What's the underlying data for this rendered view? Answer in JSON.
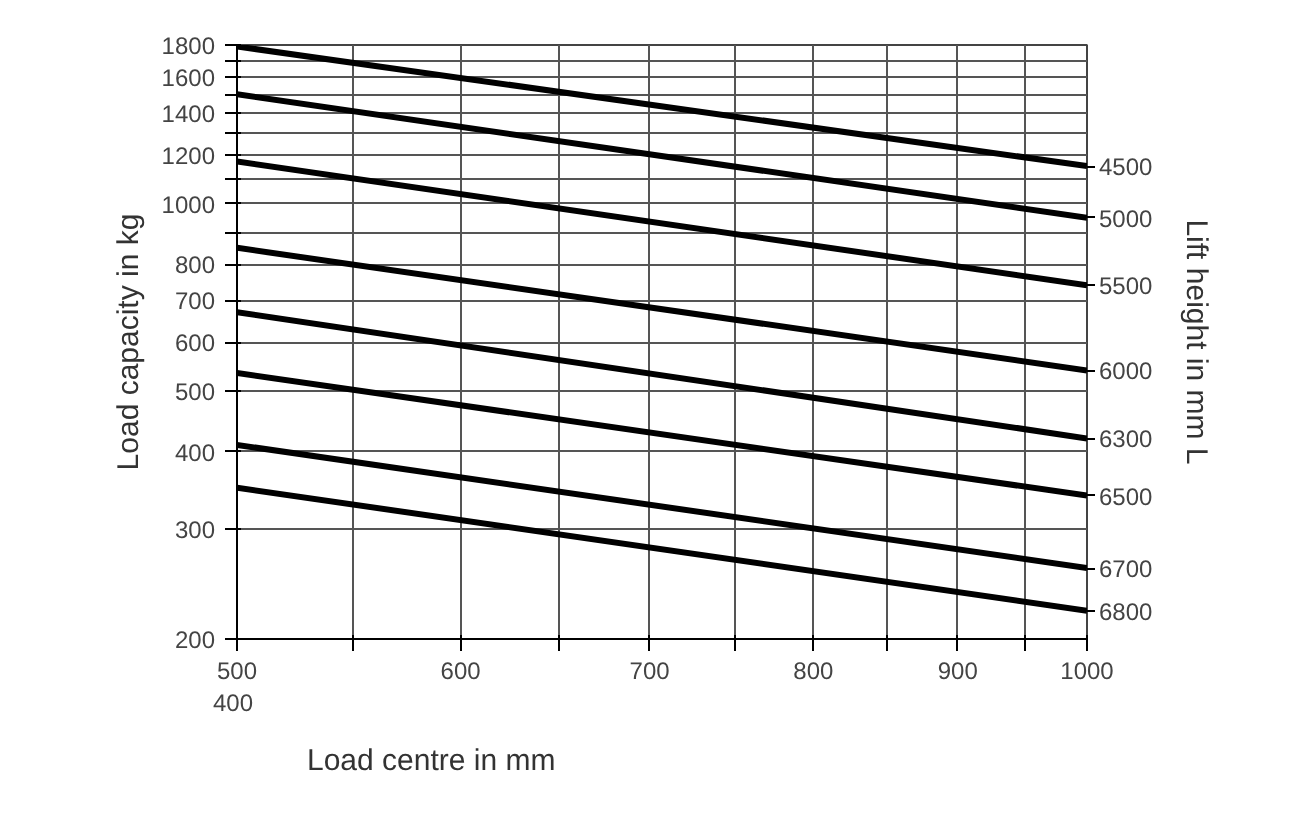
{
  "chart_data": {
    "type": "line",
    "xlabel": "Load centre in mm",
    "ylabel": "Load capacity in kg",
    "y2label": "Lift height in mm L",
    "x": [
      500,
      1000
    ],
    "series": [
      {
        "name": "4500",
        "color": "#000000",
        "values": [
          1790,
          1150
        ]
      },
      {
        "name": "5000",
        "color": "#000000",
        "values": [
          1500,
          950
        ]
      },
      {
        "name": "5500",
        "color": "#000000",
        "values": [
          1170,
          740
        ]
      },
      {
        "name": "6000",
        "color": "#000000",
        "values": [
          850,
          540
        ]
      },
      {
        "name": "6300",
        "color": "#000000",
        "values": [
          670,
          420
        ]
      },
      {
        "name": "6500",
        "color": "#000000",
        "values": [
          535,
          340
        ]
      },
      {
        "name": "6700",
        "color": "#000000",
        "values": [
          410,
          260
        ]
      },
      {
        "name": "6800",
        "color": "#000000",
        "values": [
          350,
          222
        ]
      }
    ],
    "log": "xy",
    "xlim": [
      500,
      1000
    ],
    "ylim": [
      200,
      1800
    ],
    "xticks": [
      500,
      {
        "value": 550,
        "label": null
      },
      600,
      {
        "value": 650,
        "label": null
      },
      700,
      {
        "value": 750,
        "label": null
      },
      800,
      {
        "value": 850,
        "label": null
      },
      900,
      {
        "value": 950,
        "label": null
      },
      1000
    ],
    "yticks": [
      200,
      300,
      400,
      500,
      600,
      700,
      800,
      {
        "value": 900,
        "label": null
      },
      1000,
      {
        "value": 1100,
        "label": null
      },
      1200,
      {
        "value": 1300,
        "label": null
      },
      1400,
      {
        "value": 1500,
        "label": null
      },
      1600,
      {
        "value": 1700,
        "label": null
      },
      1800
    ],
    "grid": true,
    "legend": "right",
    "marker": "none",
    "line_style": "solid",
    "annotations": [
      "400"
    ]
  }
}
